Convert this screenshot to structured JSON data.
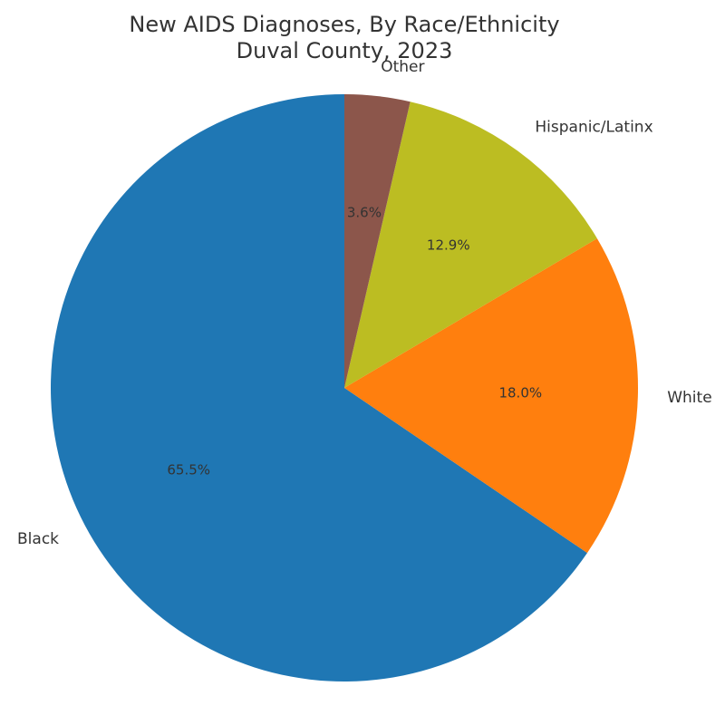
{
  "chart_data": {
    "type": "pie",
    "title": "New AIDS Diagnoses, By Race/Ethnicity\nDuval County, 2023",
    "categories": [
      "Black",
      "White",
      "Hispanic/Latinx",
      "Other"
    ],
    "values": [
      65.5,
      18.0,
      12.9,
      3.6
    ],
    "value_labels": [
      "65.5%",
      "18.0%",
      "12.9%",
      "3.6%"
    ],
    "colors": [
      "#1f77b4",
      "#ff7f0e",
      "#bcbd22",
      "#8c564b"
    ]
  }
}
